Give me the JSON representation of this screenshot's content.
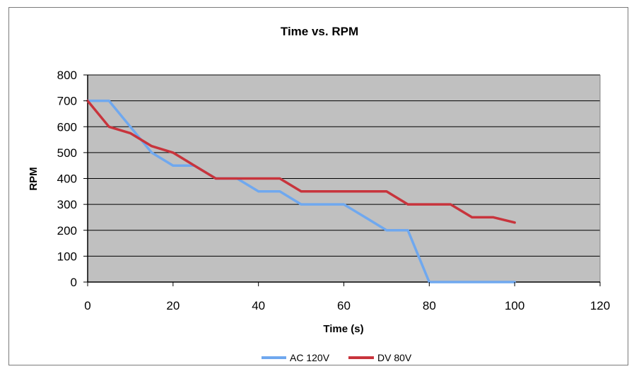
{
  "chart_data": {
    "type": "line",
    "title": "Time vs. RPM",
    "xlabel": "Time (s)",
    "ylabel": "RPM",
    "xlim": [
      0,
      120
    ],
    "ylim": [
      0,
      800
    ],
    "xticks": [
      0,
      20,
      40,
      60,
      80,
      100,
      120
    ],
    "yticks": [
      0,
      100,
      200,
      300,
      400,
      500,
      600,
      700,
      800
    ],
    "grid": "horizontal",
    "plot_background": "#c0c0c0",
    "legend_position": "bottom",
    "series": [
      {
        "name": "AC 120V",
        "color": "#6fa8ef",
        "x": [
          0,
          5,
          10,
          15,
          20,
          25,
          30,
          35,
          40,
          45,
          50,
          55,
          60,
          65,
          70,
          75,
          80,
          85,
          90,
          95,
          100
        ],
        "y": [
          700,
          700,
          600,
          500,
          450,
          450,
          400,
          400,
          350,
          350,
          300,
          300,
          300,
          250,
          200,
          200,
          0,
          0,
          0,
          0,
          0
        ]
      },
      {
        "name": "DV 80V",
        "color": "#c8343c",
        "x": [
          0,
          5,
          10,
          15,
          20,
          25,
          30,
          35,
          40,
          45,
          50,
          55,
          60,
          65,
          70,
          75,
          80,
          85,
          90,
          95,
          100
        ],
        "y": [
          700,
          600,
          575,
          525,
          500,
          450,
          400,
          400,
          400,
          400,
          350,
          350,
          350,
          350,
          350,
          300,
          300,
          300,
          250,
          250,
          230
        ]
      }
    ]
  }
}
